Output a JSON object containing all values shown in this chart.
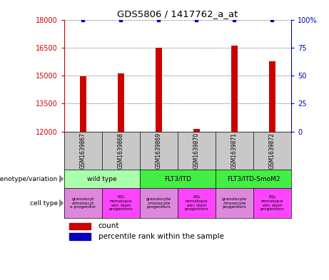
{
  "title": "GDS5806 / 1417762_a_at",
  "samples": [
    "GSM1639867",
    "GSM1639868",
    "GSM1639869",
    "GSM1639870",
    "GSM1639871",
    "GSM1639872"
  ],
  "counts": [
    14980,
    15110,
    16500,
    12150,
    16620,
    15780
  ],
  "percentiles": [
    100,
    100,
    100,
    100,
    100,
    100
  ],
  "ylim_left": [
    12000,
    18000
  ],
  "ylim_right": [
    0,
    100
  ],
  "yticks_left": [
    12000,
    13500,
    15000,
    16500,
    18000
  ],
  "yticks_right": [
    0,
    25,
    50,
    75,
    100
  ],
  "bar_color": "#cc0000",
  "dot_color": "#0000bb",
  "bar_width": 0.18,
  "genotype_groups": [
    {
      "label": "wild type",
      "start": 0,
      "end": 2,
      "color": "#aaffaa"
    },
    {
      "label": "FLT3/ITD",
      "start": 2,
      "end": 4,
      "color": "#44ee44"
    },
    {
      "label": "FLT3/ITD-SmoM2",
      "start": 4,
      "end": 6,
      "color": "#44ee44"
    }
  ],
  "cell_types": [
    {
      "label": "granulocyt\ne/monocyt\ne progenitor",
      "color": "#dd88dd"
    },
    {
      "label": "KSL\nhematopoi\netic stem\nprogenitors",
      "color": "#ff44ff"
    },
    {
      "label": "granulocyte\n/monocyte\nprogenitors",
      "color": "#dd88dd"
    },
    {
      "label": "KSL\nhematopoi\netic stem\nprogenitors",
      "color": "#ff44ff"
    },
    {
      "label": "granulocyte\n/monocyte\nprogenitors",
      "color": "#dd88dd"
    },
    {
      "label": "KSL\nhematopoi\netic stem\nprogenitors",
      "color": "#ff44ff"
    }
  ],
  "sample_bg": "#c8c8c8",
  "legend_count_color": "#cc0000",
  "legend_dot_color": "#0000bb",
  "left_axis_color": "#cc0000",
  "right_axis_color": "#0000bb",
  "grid_color": "#000000"
}
